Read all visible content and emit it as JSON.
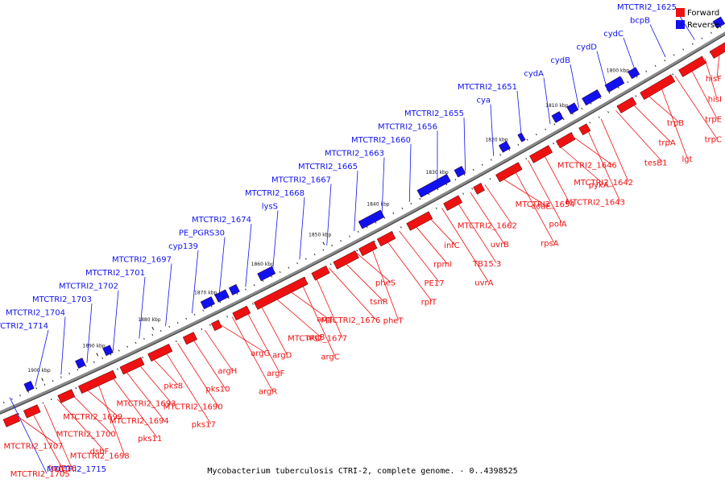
{
  "caption": "Mycobacterium tuberculosis CTRI-2, complete genome. - 0..4398525",
  "colors": {
    "forward": "#ee1111",
    "reverse": "#1111ee",
    "backbone": "#8a8a8a",
    "tick": "#111111"
  },
  "legend": [
    {
      "label": "Forward",
      "color": "#ee1111"
    },
    {
      "label": "Reverse",
      "color": "#1111ee"
    }
  ],
  "scale_ticks": [
    "1800 kbp",
    "1810 kbp",
    "1820 kbp",
    "1830 kbp",
    "1840 kbp",
    "1850 kbp",
    "1860 kbp",
    "1870 kbp",
    "1880 kbp",
    "1890 kbp",
    "1900 kbp"
  ],
  "reverse_labels": [
    "MTCTRI2_1625",
    "bcpB",
    "cydC",
    "cydD",
    "cydB",
    "cydA",
    "MTCTRI2_1651",
    "cya",
    "MTCTRI2_1655",
    "MTCTRI2_1656",
    "MTCTRI2_1660",
    "MTCTRI2_1663",
    "MTCTRI2_1665",
    "MTCTRI2_1667",
    "MTCTRI2_1668",
    "lysS",
    "MTCTRI2_1674",
    "PE_PGRS30",
    "cyp139",
    "MTCTRI2_1697",
    "MTCTRI2_1701",
    "MTCTRI2_1702",
    "MTCTRI2_1703",
    "MTCTRI2_1704",
    "MTCTRI2_1714",
    "MTCTRI2_1715"
  ],
  "forward_labels": [
    "hisF",
    "hisI",
    "trpE",
    "trpC",
    "lgt",
    "trpB",
    "trpA",
    "tesB1",
    "MTCTRI2_1642",
    "MTCTRI2_1643",
    "MTCTRI2_1646",
    "pykA",
    "MTCTRI2_1654",
    "polA",
    "rpsA",
    "coaE",
    "MTCTRI2_1662",
    "uvrB",
    "TB15.3",
    "uvrA",
    "infC",
    "rpmI",
    "PE17",
    "rplT",
    "pheT",
    "pheS",
    "tsnR",
    "MTCTRI2_1676",
    "MTCTRI2_1677",
    "argC",
    "argJ",
    "argB",
    "argD",
    "argF",
    "argR",
    "argG",
    "argH",
    "pks10",
    "MTCTRI2_1690",
    "pks17",
    "pks8",
    "MTCTRI2_1693",
    "MTCTRI2_1694",
    "pks11",
    "MTCTRI2_1698",
    "MTCTRI2_1699",
    "MTCTRI2_1700",
    "dsbF",
    "fadE16",
    "MTCTRI2_1705",
    "MTCTRI2_1707"
  ]
}
